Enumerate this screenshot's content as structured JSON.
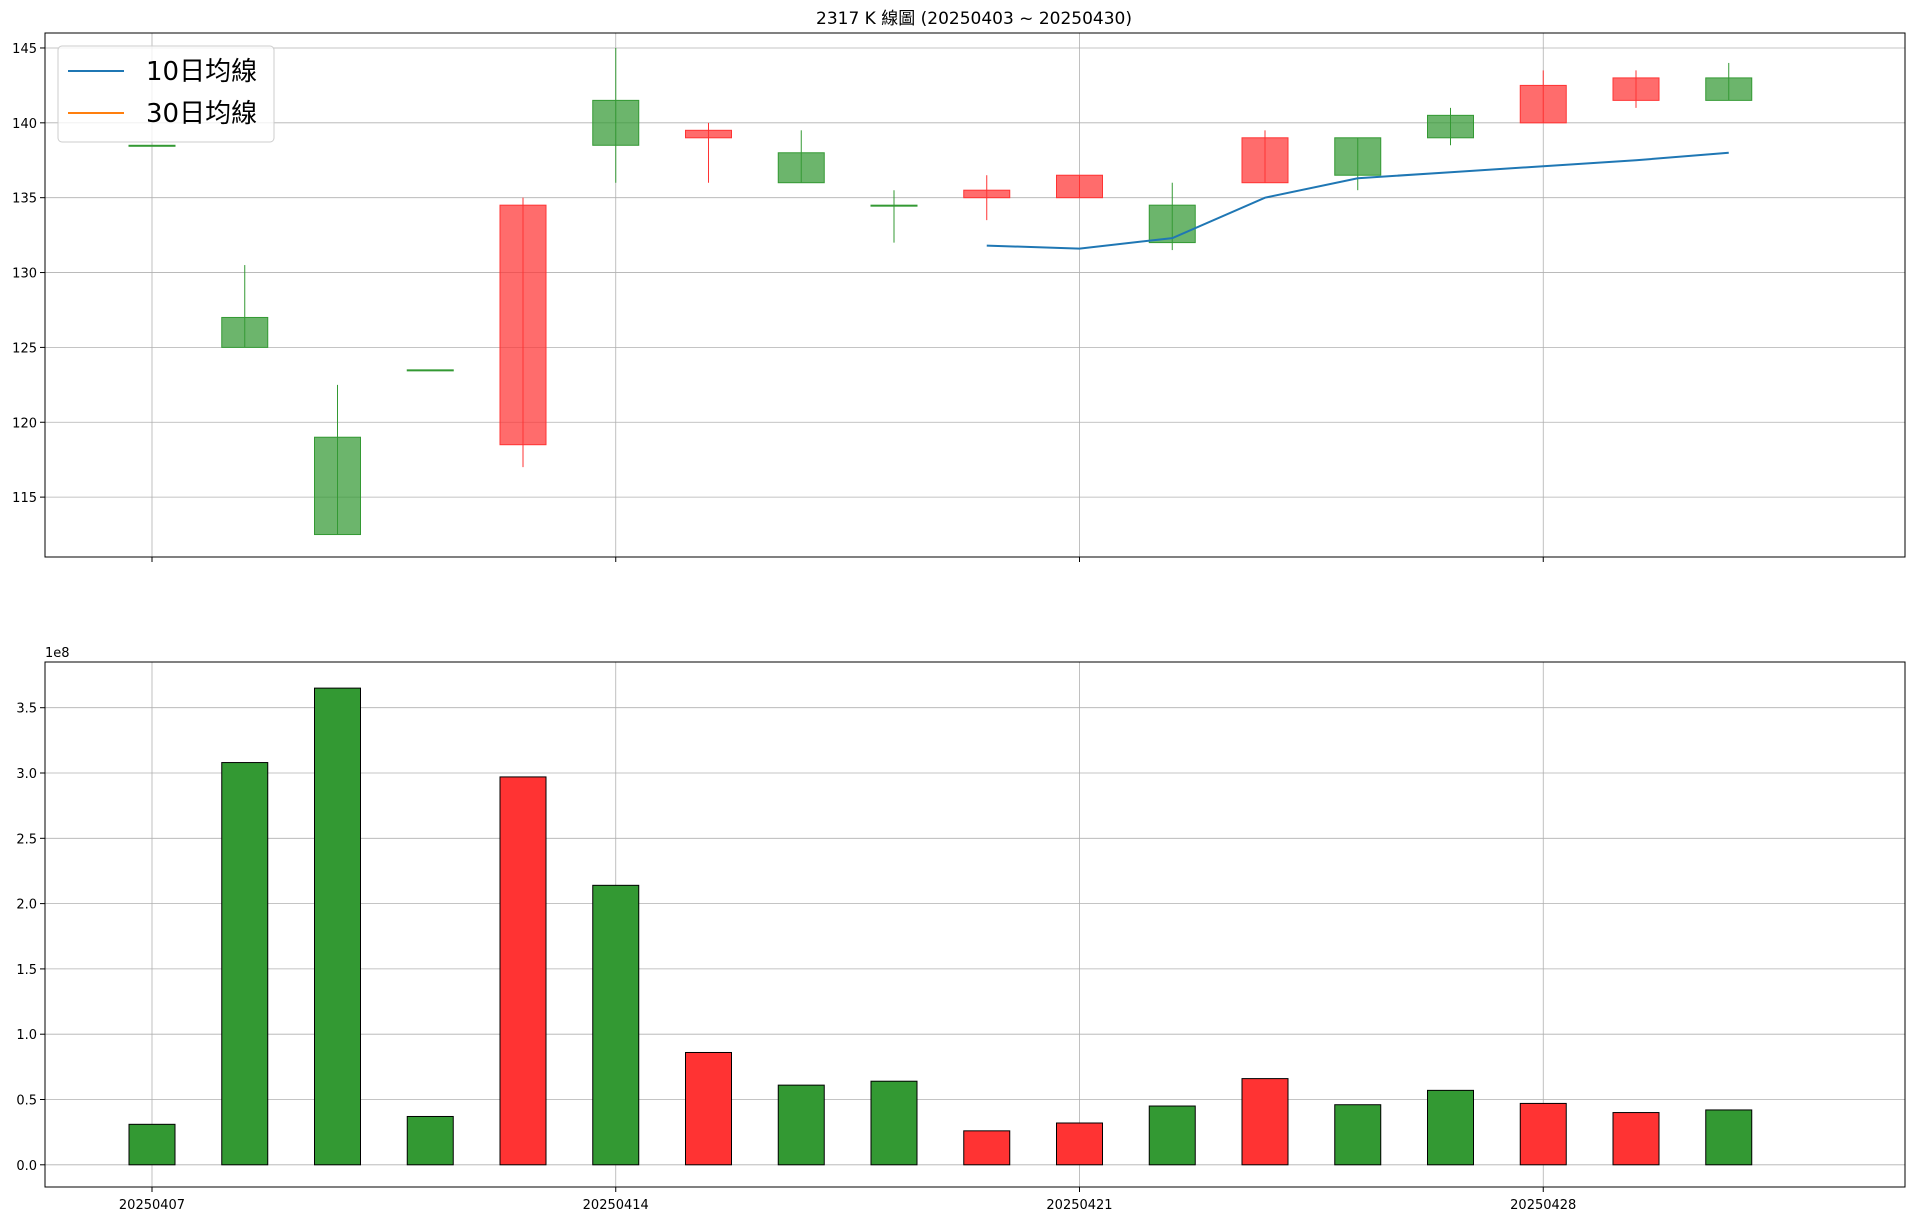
{
  "chart_data": [
    {
      "type": "candlestick",
      "title": "2317 K 線圖 (20250403 ~ 20250430)",
      "ylim": [
        111,
        146
      ],
      "yticks": [
        115,
        120,
        125,
        130,
        135,
        140,
        145
      ],
      "grid": true,
      "legend_position": "top-left",
      "legend": [
        "10日均線",
        "30日均線"
      ],
      "colors": {
        "up": "#ff3333",
        "down": "#339933",
        "ma10": "#1f77b4",
        "ma30": "#ff7f0e"
      },
      "candles": [
        {
          "open": 138.5,
          "high": 138.5,
          "low": 138.5,
          "close": 138.5
        },
        {
          "open": 127.0,
          "high": 130.5,
          "low": 125.0,
          "close": 125.0
        },
        {
          "open": 119.0,
          "high": 122.5,
          "low": 112.5,
          "close": 112.5
        },
        {
          "open": 123.5,
          "high": 123.5,
          "low": 123.5,
          "close": 123.5
        },
        {
          "open": 118.5,
          "high": 135.0,
          "low": 117.0,
          "close": 134.5
        },
        {
          "open": 141.5,
          "high": 145.0,
          "low": 136.0,
          "close": 138.5
        },
        {
          "open": 139.0,
          "high": 140.0,
          "low": 136.0,
          "close": 139.5
        },
        {
          "open": 138.0,
          "high": 139.5,
          "low": 136.0,
          "close": 136.0
        },
        {
          "open": 134.5,
          "high": 135.5,
          "low": 132.0,
          "close": 134.5
        },
        {
          "open": 135.0,
          "high": 136.5,
          "low": 133.5,
          "close": 135.5
        },
        {
          "open": 135.0,
          "high": 136.5,
          "low": 135.0,
          "close": 136.5
        },
        {
          "open": 134.5,
          "high": 136.0,
          "low": 131.5,
          "close": 132.0
        },
        {
          "open": 136.0,
          "high": 139.5,
          "low": 136.0,
          "close": 139.0
        },
        {
          "open": 139.0,
          "high": 139.0,
          "low": 135.5,
          "close": 136.5
        },
        {
          "open": 140.5,
          "high": 141.0,
          "low": 138.5,
          "close": 139.0
        },
        {
          "open": 140.0,
          "high": 143.5,
          "low": 140.0,
          "close": 142.5
        },
        {
          "open": 141.5,
          "high": 143.5,
          "low": 141.0,
          "close": 143.0
        },
        {
          "open": 143.0,
          "high": 144.0,
          "low": 141.5,
          "close": 141.5
        }
      ],
      "ma10": [
        null,
        null,
        null,
        null,
        null,
        null,
        null,
        null,
        null,
        131.8,
        131.6,
        132.3,
        135.0,
        136.3,
        136.7,
        137.1,
        137.5,
        138.0
      ],
      "ma30": []
    },
    {
      "type": "bar",
      "ylim": [
        -0.17,
        3.85
      ],
      "yticks": [
        0.0,
        0.5,
        1.0,
        1.5,
        2.0,
        2.5,
        3.0,
        3.5
      ],
      "ytick_labels": [
        "0.0",
        "0.5",
        "1.0",
        "1.5",
        "2.0",
        "2.5",
        "3.0",
        "3.5"
      ],
      "scale_label": "1e8",
      "grid": true,
      "xtick_index": [
        0,
        5,
        10,
        15
      ],
      "xtick_labels": [
        "20250407",
        "20250414",
        "20250421",
        "20250428"
      ],
      "colors": {
        "up": "#ff3333",
        "down": "#339933"
      },
      "values": [
        0.31,
        3.08,
        3.65,
        0.37,
        2.97,
        2.14,
        0.86,
        0.61,
        0.64,
        0.26,
        0.32,
        0.45,
        0.66,
        0.46,
        0.57,
        0.47,
        0.4,
        0.42
      ],
      "directions": [
        "down",
        "down",
        "down",
        "down",
        "up",
        "down",
        "up",
        "down",
        "down",
        "up",
        "up",
        "down",
        "up",
        "down",
        "down",
        "up",
        "up",
        "down"
      ]
    }
  ]
}
